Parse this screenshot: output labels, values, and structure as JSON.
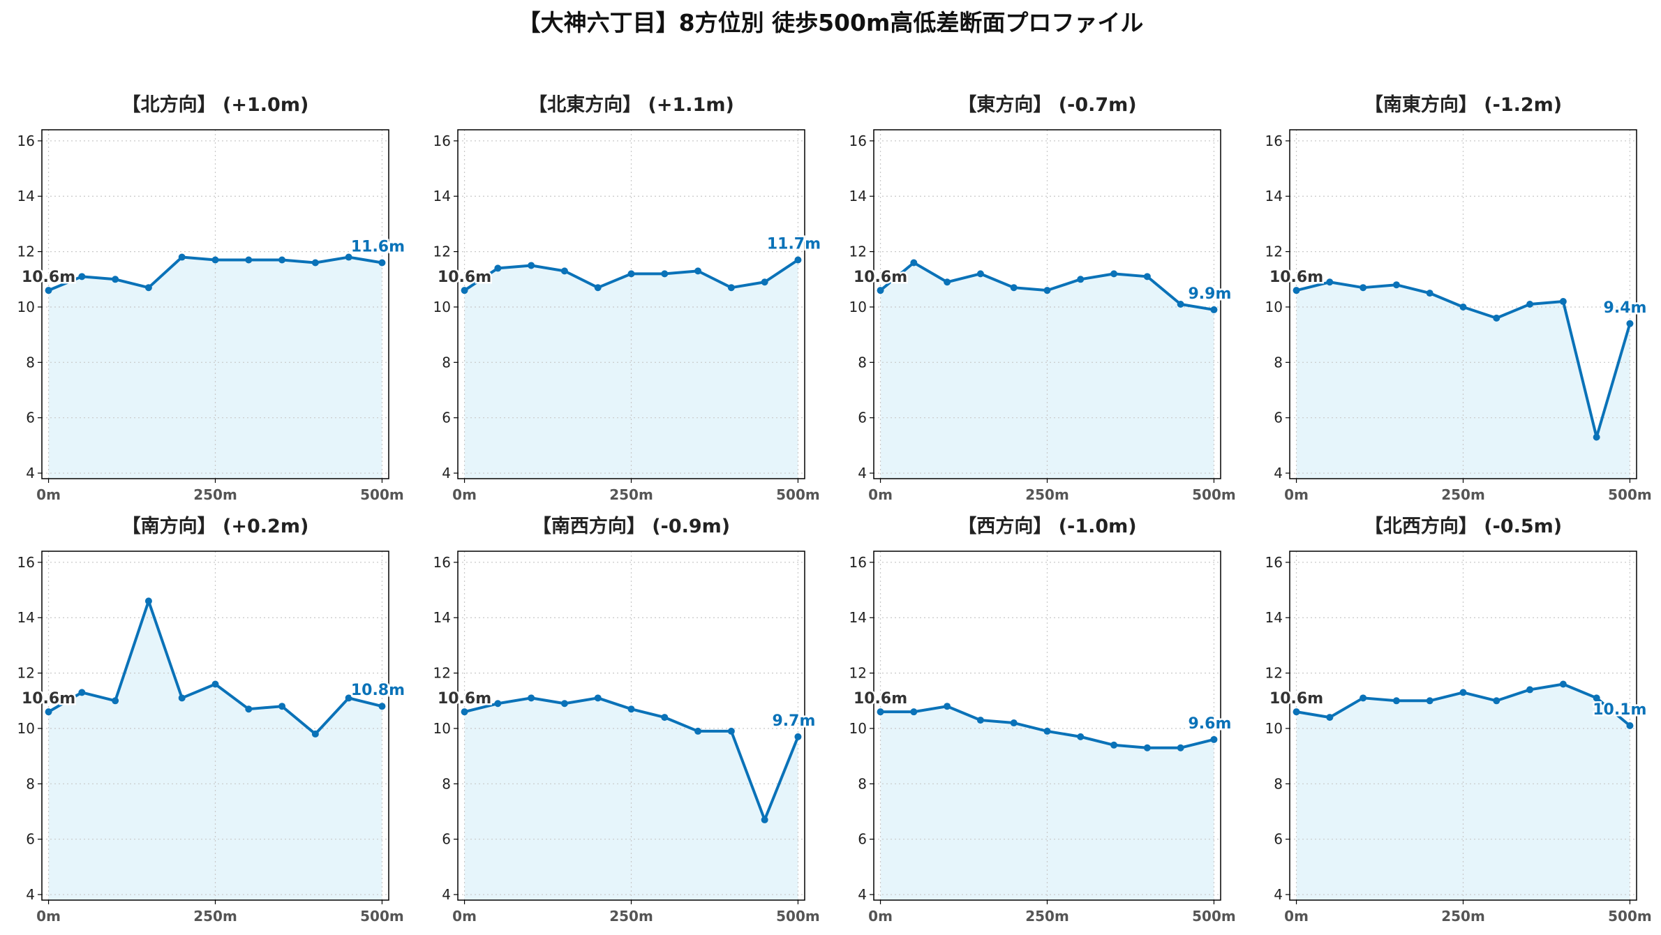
{
  "title": "【大神六丁目】8方位別 徒歩500m高低差断面プロファイル",
  "colors": {
    "line": "#0a72b8",
    "fill": "#e6f5fb",
    "grid": "#c8c8c8",
    "end_label": "#0a72b8",
    "start_label": "#333333"
  },
  "chart_data": [
    {
      "type": "area",
      "title": "【北方向】 (+1.0m)",
      "x": [
        0,
        50,
        100,
        150,
        200,
        250,
        300,
        350,
        400,
        450,
        500
      ],
      "y": [
        10.6,
        11.1,
        11.0,
        10.7,
        11.8,
        11.7,
        11.7,
        11.7,
        11.6,
        11.8,
        11.6
      ],
      "start_label": "10.6m",
      "end_label": "11.6m"
    },
    {
      "type": "area",
      "title": "【北東方向】 (+1.1m)",
      "x": [
        0,
        50,
        100,
        150,
        200,
        250,
        300,
        350,
        400,
        450,
        500
      ],
      "y": [
        10.6,
        11.4,
        11.5,
        11.3,
        10.7,
        11.2,
        11.2,
        11.3,
        10.7,
        10.9,
        11.7
      ],
      "start_label": "10.6m",
      "end_label": "11.7m"
    },
    {
      "type": "area",
      "title": "【東方向】 (-0.7m)",
      "x": [
        0,
        50,
        100,
        150,
        200,
        250,
        300,
        350,
        400,
        450,
        500
      ],
      "y": [
        10.6,
        11.6,
        10.9,
        11.2,
        10.7,
        10.6,
        11.0,
        11.2,
        11.1,
        10.1,
        9.9
      ],
      "start_label": "10.6m",
      "end_label": "9.9m"
    },
    {
      "type": "area",
      "title": "【南東方向】 (-1.2m)",
      "x": [
        0,
        50,
        100,
        150,
        200,
        250,
        300,
        350,
        400,
        450,
        500
      ],
      "y": [
        10.6,
        10.9,
        10.7,
        10.8,
        10.5,
        10.0,
        9.6,
        10.1,
        10.2,
        5.3,
        9.4
      ],
      "start_label": "10.6m",
      "end_label": "9.4m"
    },
    {
      "type": "area",
      "title": "【南方向】 (+0.2m)",
      "x": [
        0,
        50,
        100,
        150,
        200,
        250,
        300,
        350,
        400,
        450,
        500
      ],
      "y": [
        10.6,
        11.3,
        11.0,
        14.6,
        11.1,
        11.6,
        10.7,
        10.8,
        9.8,
        11.1,
        10.8
      ],
      "start_label": "10.6m",
      "end_label": "10.8m"
    },
    {
      "type": "area",
      "title": "【南西方向】 (-0.9m)",
      "x": [
        0,
        50,
        100,
        150,
        200,
        250,
        300,
        350,
        400,
        450,
        500
      ],
      "y": [
        10.6,
        10.9,
        11.1,
        10.9,
        11.1,
        10.7,
        10.4,
        9.9,
        9.9,
        6.7,
        9.7
      ],
      "start_label": "10.6m",
      "end_label": "9.7m"
    },
    {
      "type": "area",
      "title": "【西方向】 (-1.0m)",
      "x": [
        0,
        50,
        100,
        150,
        200,
        250,
        300,
        350,
        400,
        450,
        500
      ],
      "y": [
        10.6,
        10.6,
        10.8,
        10.3,
        10.2,
        9.9,
        9.7,
        9.4,
        9.3,
        9.3,
        9.6
      ],
      "start_label": "10.6m",
      "end_label": "9.6m"
    },
    {
      "type": "area",
      "title": "【北西方向】 (-0.5m)",
      "x": [
        0,
        50,
        100,
        150,
        200,
        250,
        300,
        350,
        400,
        450,
        500
      ],
      "y": [
        10.6,
        10.4,
        11.1,
        11.0,
        11.0,
        11.3,
        11.0,
        11.4,
        11.6,
        11.1,
        10.1
      ],
      "start_label": "10.6m",
      "end_label": "10.1m"
    }
  ],
  "axes": {
    "ylim": [
      3.8,
      16.4
    ],
    "xlim": [
      -10,
      510
    ],
    "y_ticks": [
      4,
      6,
      8,
      10,
      12,
      14,
      16
    ],
    "y_tick_labels": [
      "4",
      "6",
      "8",
      "10",
      "12",
      "14",
      "16"
    ],
    "x_ticks": [
      0,
      250,
      500
    ],
    "x_tick_labels": [
      "0m",
      "250m",
      "500m"
    ],
    "grid": true
  }
}
